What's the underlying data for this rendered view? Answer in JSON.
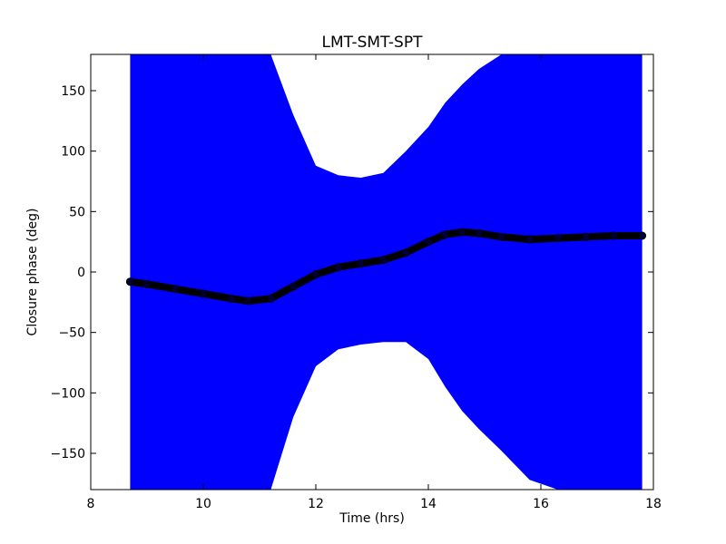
{
  "chart_data": {
    "type": "line",
    "title": "LMT-SMT-SPT",
    "xlabel": "Time (hrs)",
    "ylabel": "Closure phase (deg)",
    "xlim": [
      8,
      18
    ],
    "ylim": [
      -180,
      180
    ],
    "xticks": [
      8,
      10,
      12,
      14,
      16,
      18
    ],
    "yticks": [
      -150,
      -100,
      -50,
      0,
      50,
      100,
      150
    ],
    "grid": false,
    "colors": {
      "errorband": "#0000ff",
      "line": "#000000",
      "points": "#000033"
    },
    "series": [
      {
        "x": [
          8.7,
          9.0,
          9.5,
          10.0,
          10.5,
          10.8,
          11.2,
          11.6,
          12.0,
          12.4,
          12.8,
          13.2,
          13.6,
          14.0,
          14.3,
          14.6,
          14.9,
          15.3,
          15.8,
          16.3,
          16.8,
          17.3,
          17.8
        ],
        "y": [
          -8,
          -10,
          -14,
          -18,
          -22,
          -24,
          -22,
          -12,
          -2,
          4,
          7,
          10,
          16,
          25,
          31,
          33,
          32,
          29,
          27,
          28,
          29,
          30,
          30
        ],
        "upper": [
          180,
          180,
          180,
          180,
          180,
          180,
          180,
          130,
          88,
          80,
          78,
          82,
          100,
          120,
          140,
          155,
          168,
          180,
          180,
          180,
          180,
          180,
          180
        ],
        "lower": [
          -180,
          -180,
          -180,
          -180,
          -180,
          -180,
          -180,
          -120,
          -78,
          -64,
          -60,
          -58,
          -58,
          -72,
          -95,
          -115,
          -130,
          -148,
          -172,
          -180,
          -180,
          -180,
          -180
        ]
      }
    ]
  }
}
